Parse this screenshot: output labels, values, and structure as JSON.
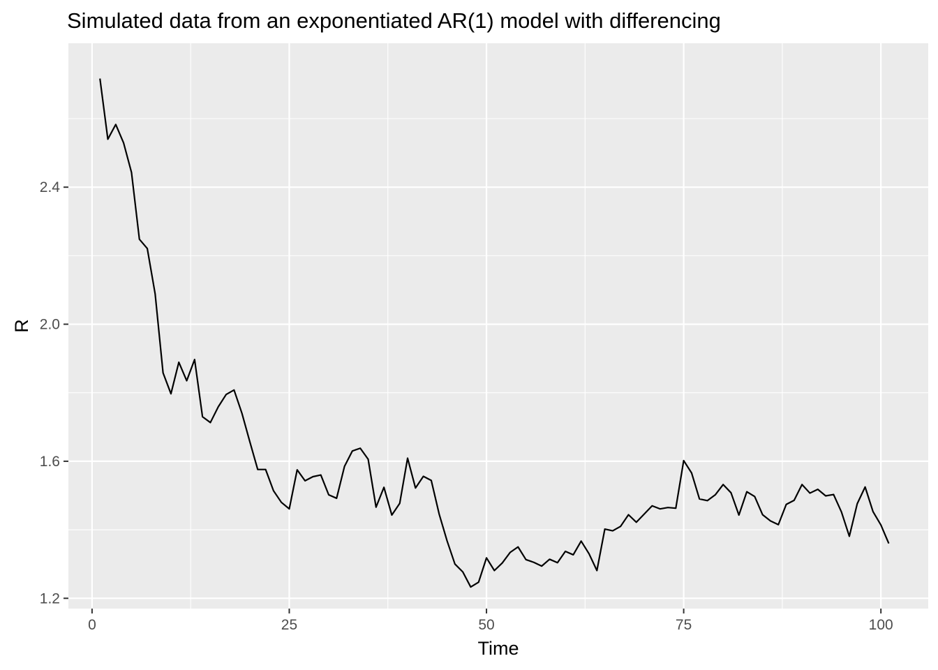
{
  "chart_data": {
    "type": "line",
    "title": "Simulated data from an exponentiated AR(1) model with differencing",
    "xlabel": "Time",
    "ylabel": "R",
    "xlim": [
      -3.0,
      106.0
    ],
    "ylim": [
      1.17,
      2.82
    ],
    "xticks": [
      0,
      25,
      50,
      75,
      100
    ],
    "xtick_labels": [
      "0",
      "25",
      "50",
      "75",
      "100"
    ],
    "yticks": [
      1.2,
      1.6,
      2.0,
      2.4
    ],
    "ytick_labels": [
      "1.2",
      "1.6",
      "2.0",
      "2.4"
    ],
    "grid": true,
    "legend": "none",
    "colors": {
      "panel": "#ebebeb",
      "grid": "#ffffff",
      "line": "#000000",
      "tick_text": "#4d4d4d"
    },
    "series": [
      {
        "x": [
          1,
          2,
          3,
          4,
          5,
          6,
          7,
          8,
          9,
          10,
          11,
          12,
          13,
          14,
          15,
          16,
          17,
          18,
          19,
          20,
          21,
          22,
          23,
          24,
          25,
          26,
          27,
          28,
          29,
          30,
          31,
          32,
          33,
          34,
          35,
          36,
          37,
          38,
          39,
          40,
          41,
          42,
          43,
          44,
          45,
          46,
          47,
          48,
          49,
          50,
          51,
          52,
          53,
          54,
          55,
          56,
          57,
          58,
          59,
          60,
          61,
          62,
          63,
          64,
          65,
          66,
          67,
          68,
          69,
          70,
          71,
          72,
          73,
          74,
          75,
          76,
          77,
          78,
          79,
          80,
          81,
          82,
          83,
          84,
          85,
          86,
          87,
          88,
          89,
          90,
          91,
          92,
          93,
          94,
          95,
          96,
          97,
          98,
          99,
          100,
          101
        ],
        "values": [
          2.717,
          2.54,
          2.583,
          2.529,
          2.443,
          2.248,
          2.221,
          2.088,
          1.858,
          1.797,
          1.889,
          1.835,
          1.897,
          1.73,
          1.713,
          1.759,
          1.795,
          1.808,
          1.74,
          1.657,
          1.576,
          1.576,
          1.514,
          1.48,
          1.461,
          1.575,
          1.543,
          1.555,
          1.56,
          1.502,
          1.492,
          1.585,
          1.63,
          1.638,
          1.606,
          1.466,
          1.524,
          1.443,
          1.477,
          1.609,
          1.522,
          1.556,
          1.544,
          1.446,
          1.368,
          1.3,
          1.277,
          1.233,
          1.247,
          1.318,
          1.281,
          1.303,
          1.334,
          1.35,
          1.313,
          1.305,
          1.294,
          1.314,
          1.304,
          1.337,
          1.327,
          1.367,
          1.33,
          1.281,
          1.402,
          1.397,
          1.41,
          1.444,
          1.422,
          1.446,
          1.47,
          1.461,
          1.465,
          1.463,
          1.602,
          1.566,
          1.49,
          1.485,
          1.502,
          1.532,
          1.508,
          1.443,
          1.511,
          1.497,
          1.444,
          1.426,
          1.415,
          1.474,
          1.486,
          1.532,
          1.507,
          1.518,
          1.499,
          1.503,
          1.452,
          1.381,
          1.476,
          1.525,
          1.453,
          1.414,
          1.36
        ]
      }
    ]
  }
}
